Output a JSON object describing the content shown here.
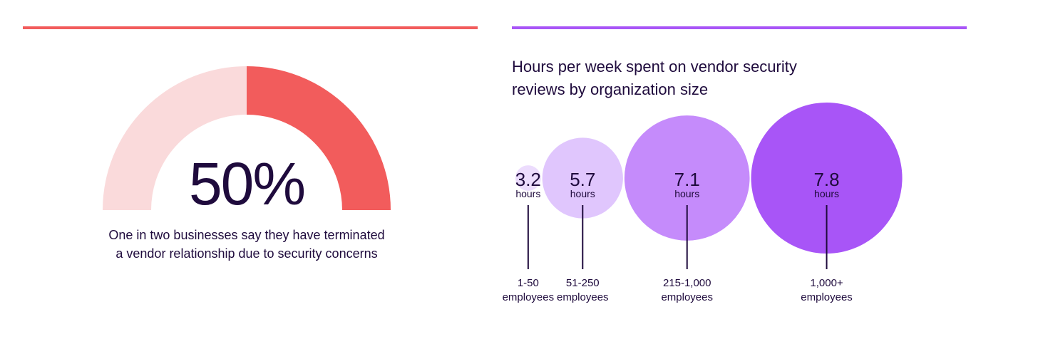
{
  "left_panel": {
    "value_label": "50%",
    "caption_line1": "One in two businesses say they have terminated",
    "caption_line2": "a vendor relationship due to security concerns",
    "accent_color": "#f25c5c",
    "track_color": "#fadadb"
  },
  "right_panel": {
    "accent_color": "#a855f7"
  },
  "chart_data": [
    {
      "type": "gauge",
      "value": 50,
      "max": 100,
      "label": "50%"
    },
    {
      "type": "bubble",
      "title": "Hours per week spent on vendor security reviews by organization size",
      "title_line1": "Hours per week spent on vendor security",
      "title_line2": "reviews by organization size",
      "unit": "hours",
      "points": [
        {
          "category_line1": "1-50",
          "category_line2": "employees",
          "value": 3.2,
          "value_label": "3.2",
          "color": "#ecdcfd"
        },
        {
          "category_line1": "51-250",
          "category_line2": "employees",
          "value": 5.7,
          "value_label": "5.7",
          "color": "#e0c6fd"
        },
        {
          "category_line1": "215-1,000",
          "category_line2": "employees",
          "value": 7.1,
          "value_label": "7.1",
          "color": "#c58bfb"
        },
        {
          "category_line1": "1,000+",
          "category_line2": "employees",
          "value": 7.8,
          "value_label": "7.8",
          "color": "#a855f7"
        }
      ]
    }
  ]
}
